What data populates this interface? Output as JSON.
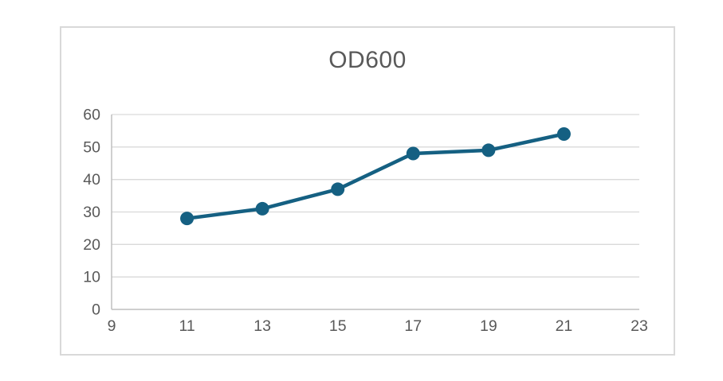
{
  "chart_data": {
    "type": "line",
    "title": "OD600",
    "x": [
      11,
      13,
      15,
      17,
      19,
      21
    ],
    "y": [
      28,
      31,
      37,
      48,
      49,
      54
    ],
    "series": [
      {
        "name": "OD600",
        "x": [
          11,
          13,
          15,
          17,
          19,
          21
        ],
        "values": [
          28,
          31,
          37,
          48,
          49,
          54
        ]
      }
    ],
    "x_ticks": [
      "9",
      "11",
      "13",
      "15",
      "17",
      "19",
      "21",
      "23"
    ],
    "y_ticks": [
      "0",
      "10",
      "20",
      "30",
      "40",
      "50",
      "60"
    ],
    "xlim": [
      9,
      23
    ],
    "ylim": [
      0,
      60
    ],
    "xlabel": "",
    "ylabel": "",
    "grid": "horizontal",
    "legend_position": "none",
    "marker": "circle",
    "colors": {
      "series": "#156082",
      "gridline": "#d9d9d9",
      "axis_line": "#bfbfbf",
      "tick_label": "#595959",
      "title": "#595959",
      "chart_border": "#d9d9d9",
      "background": "#ffffff"
    }
  }
}
